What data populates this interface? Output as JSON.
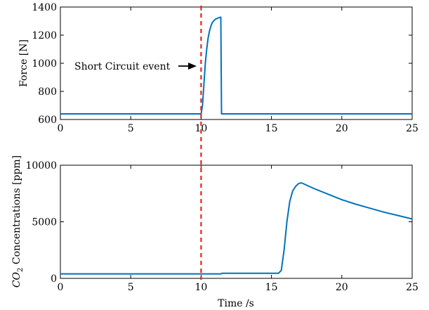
{
  "chart_data": [
    {
      "type": "line",
      "title": "",
      "xlabel": "",
      "ylabel": "Force [N]",
      "xlim": [
        0,
        25
      ],
      "ylim": [
        600,
        1400
      ],
      "xticks": [
        0,
        5,
        10,
        15,
        20,
        25
      ],
      "yticks": [
        600,
        800,
        1000,
        1200,
        1400
      ],
      "grid": false,
      "series": [
        {
          "color": "#0072BD",
          "x": [
            0,
            9.5,
            10.0,
            10.1,
            10.2,
            10.3,
            10.4,
            10.5,
            10.6,
            10.7,
            10.8,
            11.0,
            11.2,
            11.4,
            11.45,
            25
          ],
          "y": [
            640,
            640,
            640,
            700,
            850,
            1000,
            1100,
            1180,
            1230,
            1265,
            1290,
            1312,
            1322,
            1328,
            640,
            640
          ]
        }
      ],
      "annotation": {
        "text": "Short Circuit event",
        "arrow_to": [
          9.9,
          1010
        ]
      }
    },
    {
      "type": "line",
      "title": "",
      "xlabel": "Time /s",
      "ylabel": "CO2 Concentrations [ppm]",
      "xlim": [
        0,
        25
      ],
      "ylim": [
        0,
        10000
      ],
      "xticks": [
        0,
        5,
        10,
        15,
        20,
        25
      ],
      "yticks": [
        0,
        5000,
        10000
      ],
      "grid": false,
      "series": [
        {
          "color": "#0072BD",
          "x": [
            0,
            11.4,
            11.5,
            15.5,
            15.7,
            15.9,
            16.1,
            16.3,
            16.5,
            16.7,
            16.9,
            17.1,
            17.3,
            18,
            19,
            20,
            21,
            22,
            23,
            24,
            25
          ],
          "y": [
            400,
            400,
            450,
            450,
            700,
            2500,
            5000,
            6800,
            7700,
            8100,
            8350,
            8450,
            8350,
            7950,
            7450,
            6950,
            6550,
            6200,
            5850,
            5550,
            5250
          ]
        }
      ]
    }
  ],
  "event_marker": {
    "x": 10,
    "color": "#E3261F",
    "style": "dashed"
  },
  "y_label_top": "Force [N]",
  "y_label_bottom_main": "CO",
  "y_label_bottom_sub": "2",
  "y_label_bottom_rest": " Concentrations [ppm]",
  "x_label_bottom": "Time /s",
  "annotation_text": "Short Circuit event"
}
